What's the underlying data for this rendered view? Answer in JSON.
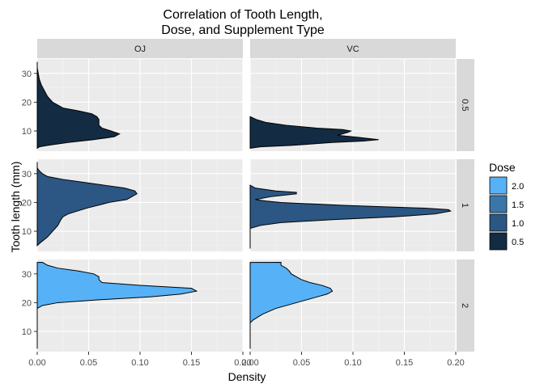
{
  "chart_data": {
    "type": "area",
    "title": "Correlation of Tooth Length,\nDose, and Supplement Type",
    "title_lines": [
      "Correlation of Tooth Length,",
      "Dose, and Supplement Type"
    ],
    "xlabel": "Density",
    "ylabel": "Tooth length (mm)",
    "columns": [
      "OJ",
      "VC"
    ],
    "rows": [
      "0.5",
      "1",
      "2"
    ],
    "xlim": [
      0,
      0.2
    ],
    "ylim": [
      3,
      35
    ],
    "xticks": [
      0,
      0.05,
      0.1,
      0.15,
      0.2
    ],
    "xtick_labels": [
      "0.00",
      "0.05",
      "0.10",
      "0.15",
      "0.20"
    ],
    "yticks": [
      10,
      20,
      30
    ],
    "ytick_labels": [
      "10",
      "20",
      "30"
    ],
    "grid": true,
    "legend": {
      "title": "Dose",
      "placement": "right",
      "entries": [
        {
          "label": "2.0",
          "color": "#56B1F7"
        },
        {
          "label": "1.5",
          "color": "#3A77A8"
        },
        {
          "label": "1.0",
          "color": "#2C5683"
        },
        {
          "label": "0.5",
          "color": "#132B43"
        }
      ]
    },
    "panels": [
      {
        "supp": "OJ",
        "dose": "0.5",
        "color": "#132B43",
        "points": [
          [
            4,
            0
          ],
          [
            4.5,
            0.002
          ],
          [
            5,
            0.01
          ],
          [
            6,
            0.03
          ],
          [
            7,
            0.055
          ],
          [
            8,
            0.075
          ],
          [
            9,
            0.08
          ],
          [
            10,
            0.072
          ],
          [
            11,
            0.063
          ],
          [
            12,
            0.06
          ],
          [
            13,
            0.06
          ],
          [
            14,
            0.06
          ],
          [
            15,
            0.058
          ],
          [
            16,
            0.053
          ],
          [
            17,
            0.04
          ],
          [
            18,
            0.025
          ],
          [
            20,
            0.015
          ],
          [
            22,
            0.01
          ],
          [
            24,
            0.007
          ],
          [
            26,
            0.004
          ],
          [
            28,
            0.002
          ],
          [
            30,
            0.001
          ],
          [
            32,
            0.0
          ],
          [
            34,
            0
          ]
        ]
      },
      {
        "supp": "VC",
        "dose": "0.5",
        "color": "#132B43",
        "points": [
          [
            4,
            0
          ],
          [
            4.5,
            0.01
          ],
          [
            5,
            0.04
          ],
          [
            6,
            0.08
          ],
          [
            6.5,
            0.11
          ],
          [
            7,
            0.125
          ],
          [
            7.8,
            0.105
          ],
          [
            8.5,
            0.085
          ],
          [
            9.5,
            0.095
          ],
          [
            10,
            0.098
          ],
          [
            10.5,
            0.09
          ],
          [
            11,
            0.065
          ],
          [
            12,
            0.035
          ],
          [
            13,
            0.015
          ],
          [
            14,
            0.006
          ],
          [
            15,
            0.0
          ]
        ]
      },
      {
        "supp": "OJ",
        "dose": "1",
        "color": "#2C5683",
        "points": [
          [
            5,
            0
          ],
          [
            6,
            0.003
          ],
          [
            8,
            0.01
          ],
          [
            10,
            0.015
          ],
          [
            12,
            0.02
          ],
          [
            14,
            0.023
          ],
          [
            15,
            0.025
          ],
          [
            16,
            0.03
          ],
          [
            18,
            0.048
          ],
          [
            20,
            0.07
          ],
          [
            21,
            0.087
          ],
          [
            22,
            0.092
          ],
          [
            23,
            0.097
          ],
          [
            24,
            0.095
          ],
          [
            25,
            0.085
          ],
          [
            26,
            0.065
          ],
          [
            27,
            0.045
          ],
          [
            28,
            0.025
          ],
          [
            29,
            0.01
          ],
          [
            30,
            0.005
          ],
          [
            31,
            0.002
          ],
          [
            32,
            0.0
          ],
          [
            34,
            0
          ]
        ]
      },
      {
        "supp": "VC",
        "dose": "1",
        "color": "#2C5683",
        "points": [
          [
            4,
            0
          ],
          [
            11,
            0.0
          ],
          [
            12,
            0.01
          ],
          [
            13,
            0.03
          ],
          [
            14,
            0.08
          ],
          [
            15,
            0.14
          ],
          [
            16,
            0.18
          ],
          [
            17,
            0.195
          ],
          [
            17.5,
            0.193
          ],
          [
            18,
            0.17
          ],
          [
            19,
            0.09
          ],
          [
            20,
            0.03
          ],
          [
            20.5,
            0.015
          ],
          [
            21,
            0.005
          ],
          [
            22,
            0.02
          ],
          [
            23,
            0.045
          ],
          [
            23.5,
            0.045
          ],
          [
            24,
            0.025
          ],
          [
            25,
            0.005
          ],
          [
            26,
            0.0
          ]
        ]
      },
      {
        "supp": "OJ",
        "dose": "2",
        "color": "#56B1F7",
        "points": [
          [
            4,
            0
          ],
          [
            18,
            0.0
          ],
          [
            19,
            0.005
          ],
          [
            20,
            0.02
          ],
          [
            21,
            0.06
          ],
          [
            22,
            0.11
          ],
          [
            23,
            0.14
          ],
          [
            24,
            0.155
          ],
          [
            25,
            0.15
          ],
          [
            26,
            0.1
          ],
          [
            27,
            0.063
          ],
          [
            28,
            0.06
          ],
          [
            29,
            0.06
          ],
          [
            30,
            0.055
          ],
          [
            31,
            0.04
          ],
          [
            32,
            0.02
          ],
          [
            33,
            0.01
          ],
          [
            34,
            0.005
          ]
        ]
      },
      {
        "supp": "VC",
        "dose": "2",
        "color": "#56B1F7",
        "points": [
          [
            4,
            0
          ],
          [
            13,
            0.0
          ],
          [
            14,
            0.003
          ],
          [
            16,
            0.012
          ],
          [
            18,
            0.025
          ],
          [
            20,
            0.045
          ],
          [
            22,
            0.065
          ],
          [
            23,
            0.075
          ],
          [
            24,
            0.08
          ],
          [
            25,
            0.078
          ],
          [
            26,
            0.07
          ],
          [
            27,
            0.058
          ],
          [
            28,
            0.05
          ],
          [
            29,
            0.045
          ],
          [
            30,
            0.04
          ],
          [
            31,
            0.038
          ],
          [
            32,
            0.035
          ],
          [
            33,
            0.03
          ],
          [
            34,
            0.03
          ]
        ]
      }
    ]
  }
}
